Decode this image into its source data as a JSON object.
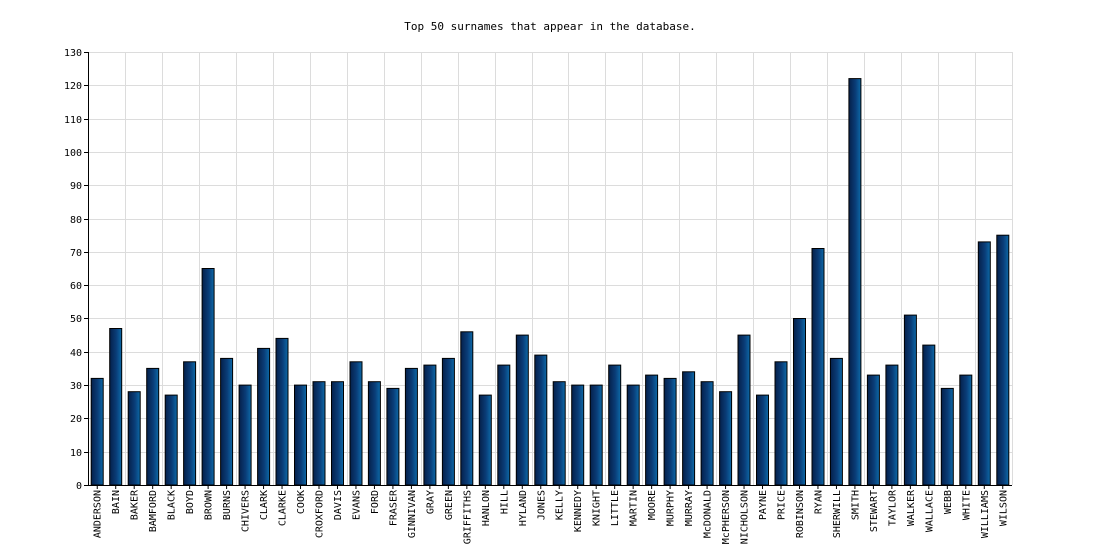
{
  "chart_data": {
    "type": "bar",
    "title": "Top 50 surnames that appear in the database.",
    "xlabel": "",
    "ylabel": "",
    "ylim": [
      0,
      130
    ],
    "yticks": [
      0,
      10,
      20,
      30,
      40,
      50,
      60,
      70,
      80,
      90,
      100,
      110,
      120,
      130
    ],
    "grid": true,
    "legend": "none",
    "bar_color": "#0a3d78",
    "categories": [
      "ANDERSON",
      "BAIN",
      "BAKER",
      "BAMFORD",
      "BLACK",
      "BOYD",
      "BROWN",
      "BURNS",
      "CHIVERS",
      "CLARK",
      "CLARKE",
      "COOK",
      "CROXFORD",
      "DAVIS",
      "EVANS",
      "FORD",
      "FRASER",
      "GINNIVAN",
      "GRAY",
      "GREEN",
      "GRIFFITHS",
      "HANLON",
      "HILL",
      "HYLAND",
      "JONES",
      "KELLY",
      "KENNEDY",
      "KNIGHT",
      "LITTLE",
      "MARTIN",
      "MOORE",
      "MURPHY",
      "MURRAY",
      "McDONALD",
      "McPHERSON",
      "NICHOLSON",
      "PAYNE",
      "PRICE",
      "ROBINSON",
      "RYAN",
      "SHERWILL",
      "SMITH",
      "STEWART",
      "TAYLOR",
      "WALKER",
      "WALLACE",
      "WEBB",
      "WHITE",
      "WILLIAMS",
      "WILSON"
    ],
    "values": [
      32,
      47,
      28,
      35,
      27,
      37,
      65,
      38,
      30,
      41,
      44,
      30,
      31,
      31,
      37,
      31,
      29,
      35,
      36,
      38,
      46,
      27,
      36,
      45,
      39,
      31,
      30,
      30,
      36,
      30,
      33,
      32,
      34,
      31,
      28,
      45,
      27,
      37,
      50,
      71,
      38,
      122,
      33,
      36,
      51,
      42,
      29,
      33,
      73,
      75
    ]
  }
}
